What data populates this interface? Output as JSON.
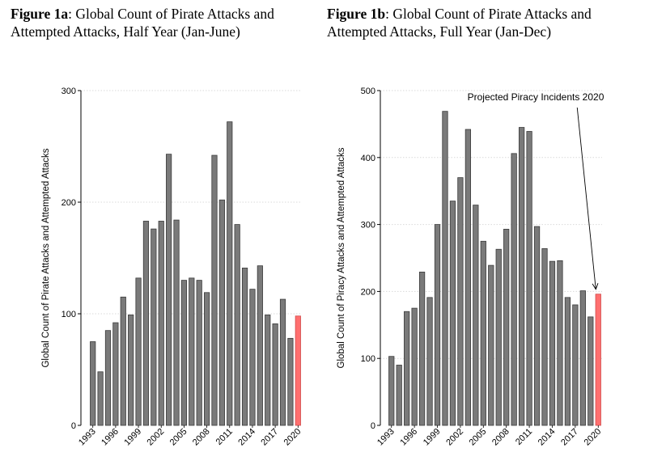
{
  "figures": [
    {
      "title_bold": "Figure 1a",
      "title_rest": ": Global Count of Pirate Attacks and Attempted Attacks, Half Year (Jan-June)"
    },
    {
      "title_bold": "Figure 1b",
      "title_rest": ": Global Count of Pirate Attacks and Attempted Attacks, Full Year (Jan-Dec)"
    }
  ],
  "colors": {
    "bar": "#7a7a7a",
    "highlight": "#ff6f6f",
    "grid": "#d9d9d9",
    "axis": "#000000"
  },
  "chart_data": [
    {
      "type": "bar",
      "title": "",
      "ylabel": "Global Count of Pirate Attacks and Attempted Attacks",
      "xlabel": "",
      "ylim": [
        0,
        300
      ],
      "yticks": [
        0,
        100,
        200,
        300
      ],
      "grid": true,
      "categories": [
        "1993",
        "1994",
        "1995",
        "1996",
        "1997",
        "1998",
        "1999",
        "2000",
        "2001",
        "2002",
        "2003",
        "2004",
        "2005",
        "2006",
        "2007",
        "2008",
        "2009",
        "2010",
        "2011",
        "2012",
        "2013",
        "2014",
        "2015",
        "2016",
        "2017",
        "2018",
        "2019",
        "2020"
      ],
      "xtick_labels": [
        "1993",
        "1996",
        "1999",
        "2002",
        "2005",
        "2008",
        "2011",
        "2014",
        "2017",
        "2020"
      ],
      "values": [
        75,
        48,
        85,
        92,
        115,
        99,
        132,
        183,
        176,
        183,
        243,
        184,
        130,
        132,
        130,
        119,
        242,
        202,
        272,
        180,
        141,
        122,
        143,
        99,
        91,
        113,
        78,
        98
      ],
      "highlight_category": "2020"
    },
    {
      "type": "bar",
      "title": "",
      "ylabel": "Global Count of Piracy Attacks and Attempted Attacks",
      "xlabel": "",
      "ylim": [
        0,
        500
      ],
      "yticks": [
        0,
        100,
        200,
        300,
        400,
        500
      ],
      "grid": true,
      "categories": [
        "1993",
        "1994",
        "1995",
        "1996",
        "1997",
        "1998",
        "1999",
        "2000",
        "2001",
        "2002",
        "2003",
        "2004",
        "2005",
        "2006",
        "2007",
        "2008",
        "2009",
        "2010",
        "2011",
        "2012",
        "2013",
        "2014",
        "2015",
        "2016",
        "2017",
        "2018",
        "2019",
        "2020"
      ],
      "xtick_labels": [
        "1993",
        "1996",
        "1999",
        "2002",
        "2005",
        "2008",
        "2011",
        "2014",
        "2017",
        "2020"
      ],
      "values": [
        103,
        90,
        170,
        175,
        229,
        191,
        300,
        469,
        335,
        370,
        442,
        329,
        275,
        239,
        263,
        293,
        406,
        445,
        439,
        297,
        264,
        245,
        246,
        191,
        180,
        201,
        162,
        196
      ],
      "highlight_category": "2020",
      "annotation": {
        "text": "Projected Piracy Incidents 2020",
        "target_category": "2020"
      }
    }
  ]
}
